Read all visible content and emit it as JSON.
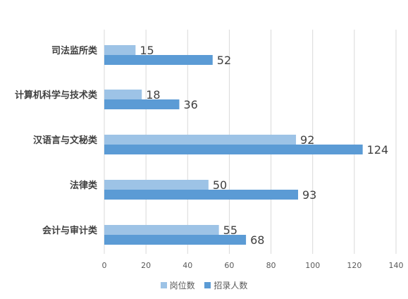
{
  "chart_data": {
    "type": "bar",
    "orientation": "horizontal",
    "categories": [
      "司法监所类",
      "计算机科学与技术类",
      "汉语言与文秘类",
      "法律类",
      "会计与审计类"
    ],
    "series": [
      {
        "name": "岗位数",
        "values": [
          15,
          18,
          92,
          50,
          55
        ],
        "color": "#9DC3E6"
      },
      {
        "name": "招录人数",
        "values": [
          52,
          36,
          124,
          93,
          68
        ],
        "color": "#5B9BD5"
      }
    ],
    "x_ticks": [
      "0",
      "20",
      "40",
      "60",
      "80",
      "100",
      "120",
      "140"
    ],
    "xlim": [
      0,
      140
    ],
    "grid": "vertical",
    "legend_position": "bottom"
  }
}
